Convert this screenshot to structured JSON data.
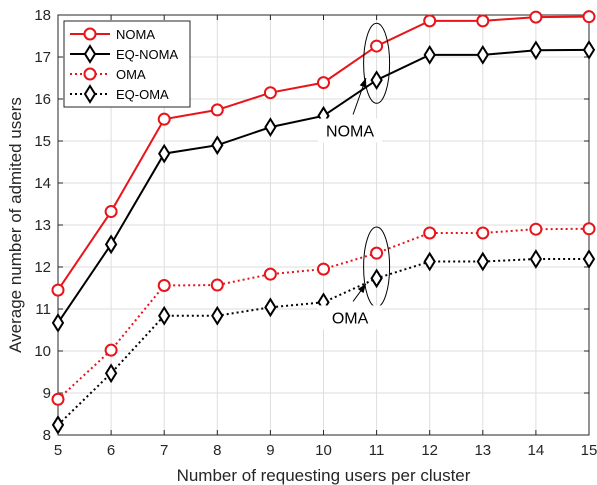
{
  "chart_data": {
    "type": "line",
    "x": [
      5,
      6,
      7,
      8,
      9,
      10,
      11,
      12,
      13,
      14,
      15
    ],
    "xlabel": "Number of requesting users per cluster",
    "ylabel": "Average number of admited users",
    "xlim": [
      5,
      15
    ],
    "ylim": [
      8,
      18
    ],
    "xticks": [
      "5",
      "6",
      "7",
      "8",
      "9",
      "10",
      "11",
      "12",
      "13",
      "14",
      "15"
    ],
    "yticks": [
      "8",
      "9",
      "10",
      "11",
      "12",
      "13",
      "14",
      "15",
      "16",
      "17",
      "18"
    ],
    "grid": true,
    "legend_position": "top-left",
    "series": [
      {
        "name": "NOMA",
        "color": "#e8141a",
        "line": "solid",
        "marker": "circle",
        "values": [
          11.45,
          13.32,
          15.52,
          15.74,
          16.15,
          16.39,
          17.26,
          17.86,
          17.86,
          17.95,
          17.96
        ]
      },
      {
        "name": "EQ-NOMA",
        "color": "#000000",
        "line": "solid",
        "marker": "diamond",
        "values": [
          10.67,
          12.54,
          14.7,
          14.9,
          15.33,
          15.6,
          16.45,
          17.05,
          17.05,
          17.16,
          17.17
        ]
      },
      {
        "name": "OMA",
        "color": "#e8141a",
        "line": "dotted",
        "marker": "circle",
        "values": [
          8.85,
          10.02,
          11.56,
          11.57,
          11.83,
          11.95,
          12.33,
          12.81,
          12.81,
          12.9,
          12.91
        ]
      },
      {
        "name": "EQ-OMA",
        "color": "#000000",
        "line": "dotted",
        "marker": "diamond",
        "values": [
          8.24,
          9.47,
          10.84,
          10.84,
          11.04,
          11.16,
          11.73,
          12.13,
          12.13,
          12.19,
          12.19
        ]
      }
    ],
    "annotations": [
      {
        "text": "NOMA",
        "ellipse_x": 11,
        "ellipse_y": 16.85,
        "label_x": 10.5,
        "label_y": 15.25,
        "arrow_to_x": 10.8,
        "arrow_to_y": 16.5
      },
      {
        "text": "OMA",
        "ellipse_x": 11,
        "ellipse_y": 12.0,
        "label_x": 10.5,
        "label_y": 10.8,
        "arrow_to_x": 10.8,
        "arrow_to_y": 11.6
      }
    ]
  }
}
